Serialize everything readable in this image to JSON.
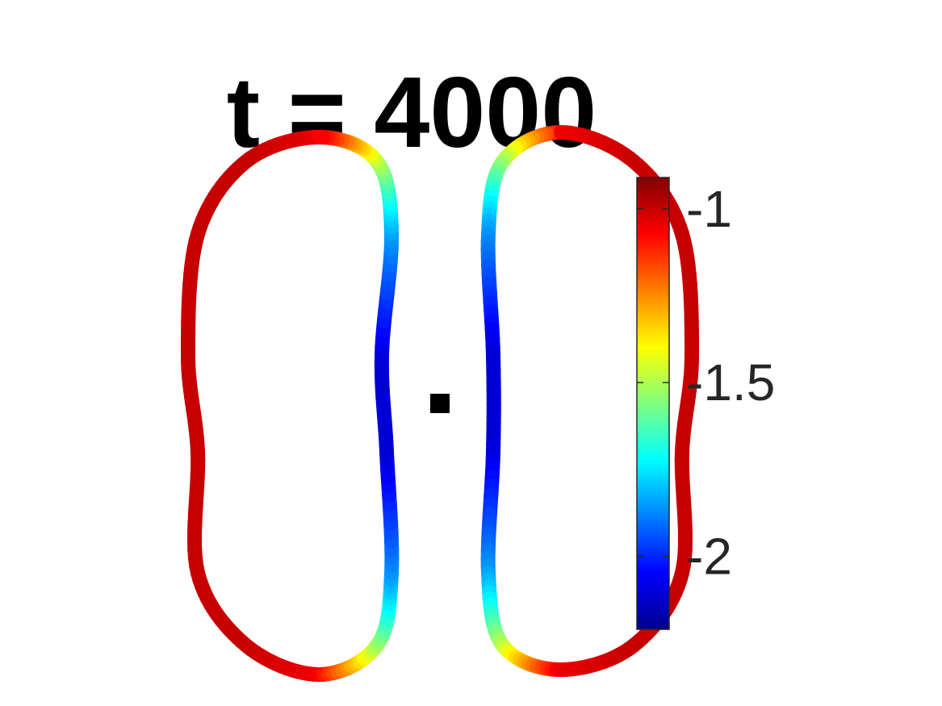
{
  "chart_data": {
    "type": "line",
    "title": "t = 4000",
    "description_kind": "two closed curves colored by a scalar value, with a colorbar",
    "colormap": "jet",
    "colorbar": {
      "limits": [
        -2.21,
        -0.91
      ],
      "ticks": [
        -1,
        -1.5,
        -2
      ],
      "tick_labels": [
        "-1",
        "-1.5",
        "-2"
      ],
      "placement": "right"
    },
    "series": [
      {
        "name": "",
        "closed": true,
        "points": [
          {
            "x": -0.25,
            "y": 0.55,
            "v": -1.05
          },
          {
            "x": -0.4,
            "y": 0.5,
            "v": -1.0
          },
          {
            "x": -0.5,
            "y": 0.35,
            "v": -1.0
          },
          {
            "x": -0.52,
            "y": 0.1,
            "v": -1.0
          },
          {
            "x": -0.5,
            "y": -0.1,
            "v": -1.0
          },
          {
            "x": -0.5,
            "y": -0.35,
            "v": -1.0
          },
          {
            "x": -0.4,
            "y": -0.5,
            "v": -1.0
          },
          {
            "x": -0.25,
            "y": -0.56,
            "v": -1.05
          },
          {
            "x": -0.13,
            "y": -0.5,
            "v": -1.5
          },
          {
            "x": -0.1,
            "y": -0.35,
            "v": -1.85
          },
          {
            "x": -0.11,
            "y": -0.1,
            "v": -2.1
          },
          {
            "x": -0.12,
            "y": 0.1,
            "v": -2.1
          },
          {
            "x": -0.1,
            "y": 0.35,
            "v": -1.85
          },
          {
            "x": -0.13,
            "y": 0.5,
            "v": -1.5
          }
        ]
      },
      {
        "name": "",
        "closed": true,
        "points": [
          {
            "x": 0.25,
            "y": 0.56,
            "v": -1.05
          },
          {
            "x": 0.13,
            "y": 0.5,
            "v": -1.5
          },
          {
            "x": 0.1,
            "y": 0.35,
            "v": -1.85
          },
          {
            "x": 0.11,
            "y": 0.1,
            "v": -2.1
          },
          {
            "x": 0.11,
            "y": -0.1,
            "v": -2.1
          },
          {
            "x": 0.1,
            "y": -0.35,
            "v": -1.85
          },
          {
            "x": 0.13,
            "y": -0.5,
            "v": -1.5
          },
          {
            "x": 0.25,
            "y": -0.55,
            "v": -1.05
          },
          {
            "x": 0.4,
            "y": -0.5,
            "v": -1.0
          },
          {
            "x": 0.5,
            "y": -0.35,
            "v": -1.0
          },
          {
            "x": 0.5,
            "y": -0.1,
            "v": -1.0
          },
          {
            "x": 0.52,
            "y": 0.1,
            "v": -1.0
          },
          {
            "x": 0.5,
            "y": 0.35,
            "v": -1.0
          },
          {
            "x": 0.4,
            "y": 0.5,
            "v": -1.0
          }
        ]
      }
    ],
    "marker": {
      "x": 0.0,
      "y": 0.0,
      "shape": "square",
      "color": "#000000"
    },
    "xlim": [
      -0.75,
      0.75
    ],
    "ylim": [
      -0.75,
      0.75
    ],
    "grid": false
  }
}
